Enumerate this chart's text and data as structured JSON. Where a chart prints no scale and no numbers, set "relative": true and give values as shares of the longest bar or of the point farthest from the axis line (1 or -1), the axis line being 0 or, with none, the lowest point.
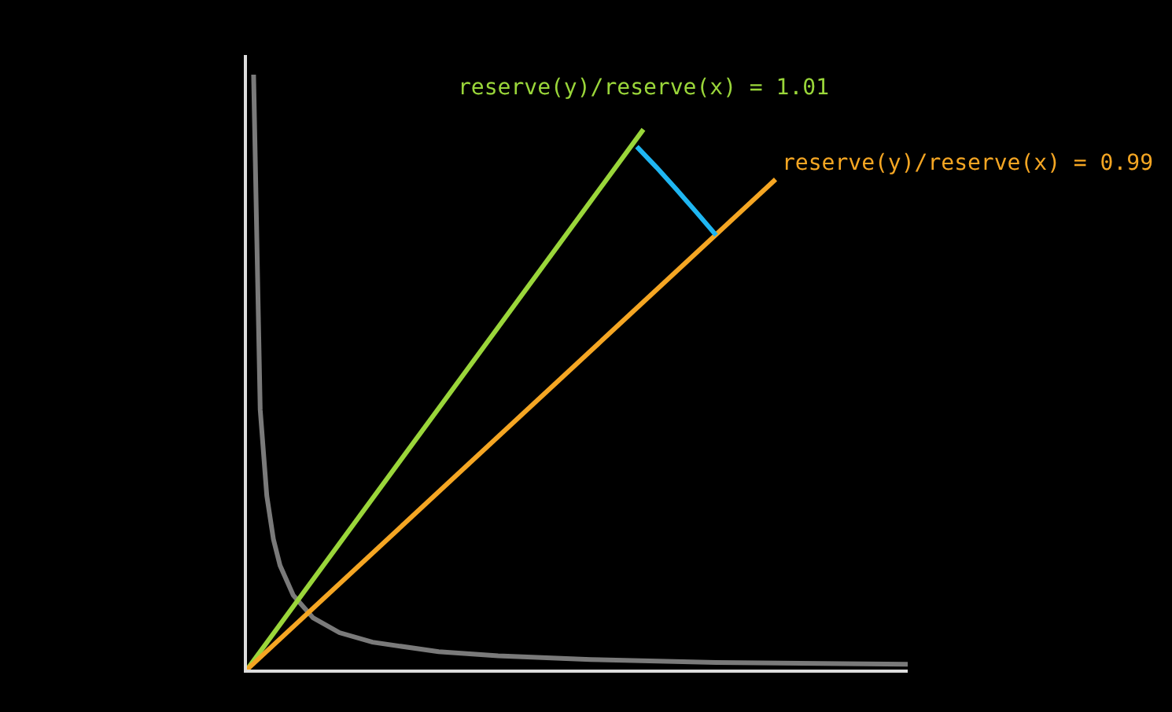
{
  "chart_data": {
    "type": "line",
    "relative": true,
    "marker": "none",
    "line_style": "solid",
    "categories": [
      null,
      null,
      null,
      null,
      null,
      null,
      null,
      null,
      null,
      null,
      null,
      null,
      null,
      null,
      null,
      null,
      null,
      null,
      null,
      null,
      null,
      null,
      null,
      null,
      null,
      null,
      null,
      null,
      null,
      null,
      null,
      null,
      null,
      null,
      null,
      null,
      null,
      null,
      null,
      null,
      null,
      null,
      null,
      null,
      null,
      null,
      null,
      null,
      null,
      null,
      null,
      null,
      null,
      null,
      null,
      null,
      null,
      null,
      null,
      null,
      null,
      null,
      null,
      null,
      null,
      null,
      null,
      null,
      null,
      null,
      null,
      null,
      null,
      null,
      null,
      null,
      null,
      null,
      null,
      null,
      null,
      null,
      null,
      null,
      null,
      null,
      null,
      null,
      null,
      null,
      null,
      null,
      null,
      null,
      null,
      null,
      null,
      null,
      null,
      null,
      null
    ],
    "series": [
      {
        "color": "#7a7a7a",
        "values": [
          null,
          1,
          0.437,
          0.292,
          0.219,
          0.175,
          null,
          0.125,
          null,
          null,
          0.087,
          null,
          null,
          null,
          0.062,
          null,
          null,
          null,
          null,
          0.046,
          null,
          null,
          null,
          null,
          null,
          null,
          null,
          null,
          null,
          0.03,
          null,
          null,
          null,
          null,
          null,
          null,
          null,
          null,
          0.023,
          null,
          null,
          null,
          null,
          null,
          null,
          null,
          null,
          null,
          null,
          null,
          null,
          null,
          0.017,
          null,
          null,
          null,
          null,
          null,
          null,
          null,
          null,
          null,
          null,
          null,
          null,
          null,
          null,
          null,
          null,
          null,
          null,
          0.012,
          null,
          null,
          null,
          null,
          null,
          null,
          null,
          null,
          null,
          null,
          null,
          null,
          null,
          null,
          null,
          null,
          null,
          null,
          null,
          null,
          null,
          null,
          null,
          null,
          null,
          null,
          null,
          null,
          0.009
        ]
      },
      {
        "color": "#9ad63a",
        "values": [
          0,
          null,
          null,
          null,
          null,
          null,
          null,
          null,
          null,
          null,
          null,
          null,
          null,
          null,
          null,
          null,
          null,
          null,
          null,
          null,
          null,
          null,
          null,
          null,
          null,
          null,
          null,
          null,
          null,
          null,
          null,
          null,
          null,
          null,
          null,
          null,
          null,
          null,
          null,
          null,
          null,
          null,
          null,
          null,
          null,
          null,
          null,
          null,
          null,
          null,
          null,
          null,
          null,
          null,
          null,
          null,
          null,
          null,
          null,
          null,
          0.908,
          null,
          null,
          null,
          null,
          null,
          null,
          null,
          null,
          null,
          null,
          null,
          null,
          null,
          null,
          null,
          null,
          null,
          null,
          null,
          null,
          null,
          null,
          null,
          null,
          null,
          null,
          null,
          null,
          null,
          null,
          null,
          null,
          null,
          null,
          null,
          null,
          null,
          null,
          null,
          null
        ]
      },
      {
        "color": "#f5a623",
        "values": [
          0,
          null,
          null,
          null,
          null,
          null,
          null,
          null,
          null,
          null,
          null,
          null,
          null,
          null,
          null,
          null,
          null,
          null,
          null,
          null,
          null,
          null,
          null,
          null,
          null,
          null,
          null,
          null,
          null,
          null,
          null,
          null,
          null,
          null,
          null,
          null,
          null,
          null,
          null,
          null,
          null,
          null,
          null,
          null,
          null,
          null,
          null,
          null,
          null,
          null,
          null,
          null,
          null,
          null,
          null,
          null,
          null,
          null,
          null,
          null,
          null,
          null,
          null,
          null,
          null,
          null,
          null,
          null,
          null,
          null,
          null,
          null,
          null,
          null,
          null,
          null,
          null,
          null,
          null,
          null,
          0.824,
          null,
          null,
          null,
          null,
          null,
          null,
          null,
          null,
          null,
          null,
          null,
          null,
          null,
          null,
          null,
          null,
          null,
          null,
          null,
          null
        ]
      },
      {
        "color": "#1fb6f2",
        "values": [
          null,
          null,
          null,
          null,
          null,
          null,
          null,
          null,
          null,
          null,
          null,
          null,
          null,
          null,
          null,
          null,
          null,
          null,
          null,
          null,
          null,
          null,
          null,
          null,
          null,
          null,
          null,
          null,
          null,
          null,
          null,
          null,
          null,
          null,
          null,
          null,
          null,
          null,
          null,
          null,
          null,
          null,
          null,
          null,
          null,
          null,
          null,
          null,
          null,
          null,
          null,
          null,
          null,
          null,
          null,
          null,
          null,
          null,
          null,
          0.879,
          null,
          null,
          0.844,
          null,
          null,
          0.807,
          null,
          null,
          0.769,
          null,
          null,
          0.73,
          null,
          null,
          null,
          null,
          null,
          null,
          null,
          null,
          null,
          null,
          null,
          null,
          null,
          null,
          null,
          null,
          null,
          null,
          null,
          null,
          null,
          null,
          null,
          null,
          null,
          null,
          null,
          null,
          null
        ]
      }
    ],
    "annotations": [
      "reserve(y)/reserve(x) = 1.01",
      "reserve(y)/reserve(x) = 0.99"
    ]
  }
}
